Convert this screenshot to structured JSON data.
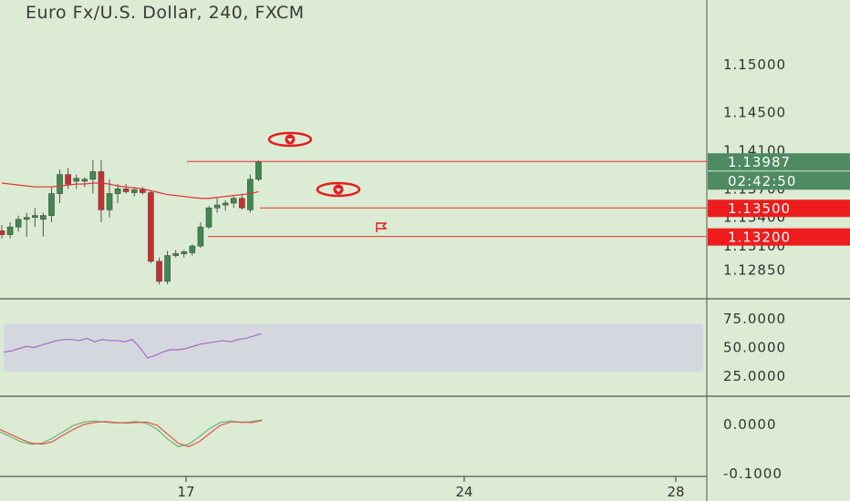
{
  "title": "Euro Fx/U.S. Dollar, 240, FXCM",
  "chart_data": [
    {
      "type": "candlestick",
      "title": "Euro Fx/U.S. Dollar, 240, FXCM",
      "ylim": [
        1.127,
        1.1525
      ],
      "y_ticks": [
        "1.15000",
        "1.14500",
        "1.14100",
        "1.13700",
        "1.13400",
        "1.13100",
        "1.12850"
      ],
      "x_ticks": [
        "17",
        "24",
        "28"
      ],
      "colors": {
        "up": "#3e8a4f",
        "down": "#cc2e2e",
        "wick": "#555555",
        "line": "#e03030"
      },
      "candles": [
        {
          "o": 1.1326,
          "h": 1.1332,
          "l": 1.1318,
          "c": 1.1322
        },
        {
          "o": 1.1322,
          "h": 1.1335,
          "l": 1.1318,
          "c": 1.133
        },
        {
          "o": 1.133,
          "h": 1.1342,
          "l": 1.1325,
          "c": 1.1338
        },
        {
          "o": 1.1338,
          "h": 1.1345,
          "l": 1.132,
          "c": 1.134
        },
        {
          "o": 1.134,
          "h": 1.135,
          "l": 1.133,
          "c": 1.1342
        },
        {
          "o": 1.1338,
          "h": 1.1345,
          "l": 1.132,
          "c": 1.1342
        },
        {
          "o": 1.1342,
          "h": 1.1372,
          "l": 1.1335,
          "c": 1.1365
        },
        {
          "o": 1.1365,
          "h": 1.139,
          "l": 1.1355,
          "c": 1.1385
        },
        {
          "o": 1.1385,
          "h": 1.1392,
          "l": 1.137,
          "c": 1.1375
        },
        {
          "o": 1.1378,
          "h": 1.1385,
          "l": 1.137,
          "c": 1.1381
        },
        {
          "o": 1.1378,
          "h": 1.1382,
          "l": 1.1372,
          "c": 1.138
        },
        {
          "o": 1.138,
          "h": 1.14,
          "l": 1.1365,
          "c": 1.1388
        },
        {
          "o": 1.1388,
          "h": 1.14,
          "l": 1.1335,
          "c": 1.1348
        },
        {
          "o": 1.1348,
          "h": 1.138,
          "l": 1.134,
          "c": 1.1365
        },
        {
          "o": 1.1365,
          "h": 1.1375,
          "l": 1.1355,
          "c": 1.137
        },
        {
          "o": 1.137,
          "h": 1.1375,
          "l": 1.1365,
          "c": 1.1367
        },
        {
          "o": 1.1366,
          "h": 1.1372,
          "l": 1.1362,
          "c": 1.1369
        },
        {
          "o": 1.1369,
          "h": 1.1372,
          "l": 1.1364,
          "c": 1.1366
        },
        {
          "o": 1.1366,
          "h": 1.1368,
          "l": 1.1292,
          "c": 1.1294
        },
        {
          "o": 1.1294,
          "h": 1.1298,
          "l": 1.127,
          "c": 1.1273
        },
        {
          "o": 1.1273,
          "h": 1.1305,
          "l": 1.127,
          "c": 1.13
        },
        {
          "o": 1.13,
          "h": 1.1306,
          "l": 1.1298,
          "c": 1.1302
        },
        {
          "o": 1.1302,
          "h": 1.1306,
          "l": 1.1298,
          "c": 1.1304
        },
        {
          "o": 1.1303,
          "h": 1.1312,
          "l": 1.13,
          "c": 1.131
        },
        {
          "o": 1.131,
          "h": 1.1335,
          "l": 1.1308,
          "c": 1.133
        },
        {
          "o": 1.133,
          "h": 1.1352,
          "l": 1.1328,
          "c": 1.135
        },
        {
          "o": 1.135,
          "h": 1.136,
          "l": 1.1345,
          "c": 1.1353
        },
        {
          "o": 1.1353,
          "h": 1.1358,
          "l": 1.1347,
          "c": 1.1355
        },
        {
          "o": 1.1355,
          "h": 1.1362,
          "l": 1.135,
          "c": 1.136
        },
        {
          "o": 1.136,
          "h": 1.1365,
          "l": 1.1348,
          "c": 1.135
        },
        {
          "o": 1.1348,
          "h": 1.1385,
          "l": 1.1345,
          "c": 1.138
        },
        {
          "o": 1.138,
          "h": 1.14,
          "l": 1.1378,
          "c": 1.1398
        }
      ],
      "moving_average": [
        1.1376,
        1.1375,
        1.1374,
        1.1373,
        1.1372,
        1.1372,
        1.1372,
        1.1373,
        1.1374,
        1.1375,
        1.1375,
        1.1376,
        1.1376,
        1.1375,
        1.1373,
        1.1372,
        1.1371,
        1.137,
        1.1368,
        1.1366,
        1.1364,
        1.1363,
        1.1362,
        1.1361,
        1.136,
        1.136,
        1.1361,
        1.1362,
        1.1363,
        1.1364,
        1.1365,
        1.1367
      ],
      "horizontal_lines": [
        {
          "price": 1.13987,
          "label": "1.13987"
        },
        {
          "price": 1.135,
          "label": "1.13500"
        },
        {
          "price": 1.132,
          "label": "1.13200"
        }
      ],
      "countdown": "02:42:50"
    },
    {
      "type": "line",
      "name": "RSI",
      "ylim": [
        5,
        95
      ],
      "y_ticks": [
        "75.0000",
        "50.0000",
        "25.0000"
      ],
      "band": [
        30,
        70
      ],
      "values": [
        46,
        47,
        49,
        51,
        50,
        52,
        54,
        56,
        57,
        57,
        56,
        58,
        55,
        57,
        56,
        56,
        55,
        57,
        50,
        41,
        43,
        46,
        48,
        48,
        49,
        51,
        53,
        54,
        55,
        56,
        55,
        57,
        58,
        60,
        62
      ]
    },
    {
      "type": "line",
      "name": "Stochastic RSI",
      "ylim": [
        -0.12,
        0.05
      ],
      "y_ticks": [
        "0.0000",
        "-0.1000"
      ],
      "series": [
        {
          "color": "#66b56b",
          "values": [
            -0.015,
            -0.025,
            -0.035,
            -0.04,
            -0.038,
            -0.028,
            -0.015,
            -0.002,
            0.005,
            0.007,
            0.005,
            0.003,
            0.004,
            0.006,
            0.002,
            -0.01,
            -0.03,
            -0.045,
            -0.04,
            -0.025,
            -0.008,
            0.004,
            0.007,
            0.004,
            0.006,
            0.009
          ]
        },
        {
          "color": "#e25353",
          "values": [
            -0.01,
            -0.02,
            -0.03,
            -0.038,
            -0.04,
            -0.035,
            -0.022,
            -0.01,
            0.0,
            0.004,
            0.006,
            0.004,
            0.003,
            0.004,
            0.005,
            -0.002,
            -0.02,
            -0.038,
            -0.045,
            -0.035,
            -0.018,
            -0.002,
            0.005,
            0.005,
            0.004,
            0.008
          ]
        }
      ]
    }
  ]
}
